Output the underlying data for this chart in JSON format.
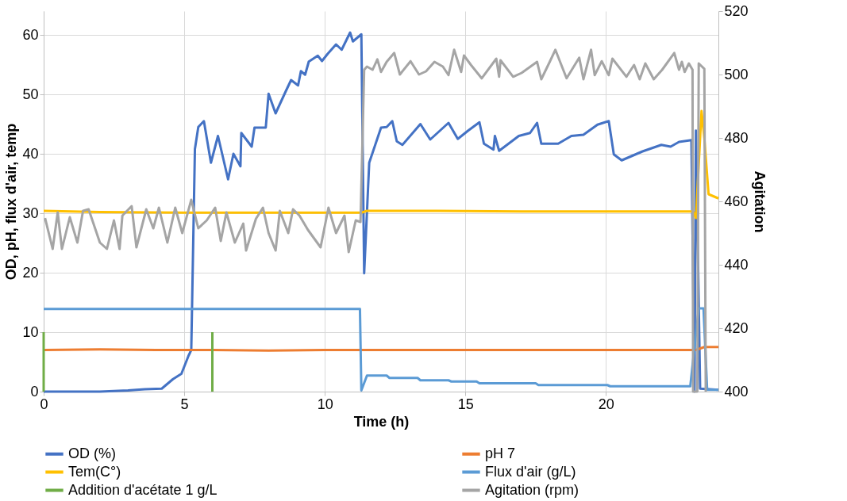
{
  "chart_data": {
    "type": "line",
    "xlabel": "Time (h)",
    "ylabel": "OD, pH, flux d'air, temp",
    "y2label": "Agitation",
    "xlim": [
      0,
      24
    ],
    "xticks": [
      0,
      5,
      10,
      15,
      20
    ],
    "ylim": [
      0,
      64
    ],
    "yticks": [
      0,
      10,
      20,
      30,
      40,
      50,
      60
    ],
    "y2lim": [
      400,
      520
    ],
    "y2ticks": [
      400,
      420,
      440,
      460,
      480,
      500,
      520
    ],
    "grid": true,
    "legend": "bottom",
    "line_style": "solid",
    "marker": "none",
    "series": [
      {
        "name": "OD (%)",
        "color": "#4472c4",
        "x": [
          0,
          1,
          2,
          3,
          3.6,
          4.2,
          4.6,
          4.9,
          5.15,
          5.25,
          5.38,
          5.5,
          5.7,
          5.95,
          6.2,
          6.56,
          6.75,
          7.0,
          7.03,
          7.4,
          7.5,
          7.9,
          8.0,
          8.25,
          8.6,
          8.8,
          9.05,
          9.15,
          9.3,
          9.43,
          9.75,
          9.9,
          10.1,
          10.4,
          10.6,
          10.9,
          11.0,
          11.3,
          11.4,
          11.58,
          12.0,
          12.2,
          12.4,
          12.56,
          12.76,
          13.4,
          13.75,
          14.4,
          14.73,
          15.1,
          15.5,
          15.66,
          16.0,
          16.05,
          16.2,
          16.9,
          17.3,
          17.55,
          17.7,
          18.3,
          18.77,
          19.2,
          19.7,
          20.1,
          20.28,
          20.56,
          21.3,
          21.97,
          22.3,
          22.6,
          23.04,
          23.15,
          23.2,
          23.35,
          24
        ],
        "values": [
          0,
          0,
          0,
          0.2,
          0.4,
          0.5,
          2.1,
          3,
          6,
          7,
          40.8,
          44.5,
          45.5,
          38.5,
          43,
          35.7,
          40,
          37.9,
          43.5,
          41.2,
          44.4,
          44.4,
          50.1,
          46.8,
          50.4,
          52.4,
          51.5,
          53.9,
          53.3,
          55.5,
          56.5,
          55.6,
          56.8,
          58.4,
          57.5,
          60.4,
          58.9,
          60.1,
          19.9,
          38.5,
          44.4,
          44.5,
          45.5,
          42.1,
          41.5,
          45,
          42.4,
          45.2,
          42.5,
          43.9,
          45.3,
          41.7,
          40.7,
          43,
          40.5,
          43,
          43.5,
          45.2,
          41.7,
          41.7,
          43,
          43.2,
          44.9,
          45.5,
          39.9,
          38.9,
          40.4,
          41.5,
          41.2,
          42,
          42.3,
          0,
          43.9,
          0.5,
          0.3
        ]
      },
      {
        "name": "pH 7",
        "color": "#ed7d31",
        "x": [
          0,
          2,
          4,
          6,
          8,
          10,
          12,
          14,
          16,
          18,
          20,
          22,
          23.2,
          23.5,
          24
        ],
        "values": [
          7,
          7.1,
          7,
          7,
          6.9,
          7,
          7,
          7,
          7,
          7,
          7,
          7,
          7,
          7.5,
          7.5
        ]
      },
      {
        "name": "Tem(C°)",
        "color": "#ffc000",
        "x": [
          0,
          2,
          5,
          8,
          11.3,
          11.5,
          14,
          17,
          20,
          23.1,
          23.2,
          23.4,
          23.5,
          23.65,
          24
        ],
        "values": [
          30.4,
          30.2,
          30.1,
          30.1,
          30.1,
          30.4,
          30.4,
          30.3,
          30.3,
          30.3,
          29.2,
          47.2,
          42.6,
          33.2,
          32.5
        ]
      },
      {
        "name": "Flux d'air (g/L)",
        "color": "#5b9bd5",
        "x": [
          0,
          11.25,
          11.3,
          11.5,
          12.2,
          12.3,
          13.3,
          13.4,
          14.4,
          14.5,
          15.4,
          15.5,
          17.5,
          17.6,
          20.05,
          20.15,
          23.0,
          23.3,
          23.47,
          23.6,
          24
        ],
        "values": [
          13.9,
          13.9,
          0.2,
          2.7,
          2.7,
          2.3,
          2.3,
          1.9,
          1.9,
          1.7,
          1.7,
          1.4,
          1.4,
          1.1,
          1.1,
          0.9,
          0.9,
          14,
          14,
          0.3,
          0.3
        ]
      },
      {
        "name": "Addition d'acétate 1 g/L",
        "color": "#70ad47",
        "x": [
          0,
          0,
          3,
          6,
          6
        ],
        "values": [
          10,
          0,
          null,
          0,
          10
        ]
      },
      {
        "name": "Agitation (rpm)",
        "color": "#a5a5a5",
        "axis": "y2",
        "x": [
          0.05,
          0.32,
          0.5,
          0.65,
          0.93,
          1.2,
          1.4,
          1.6,
          2.0,
          2.25,
          2.5,
          2.7,
          2.8,
          3.13,
          3.3,
          3.65,
          3.9,
          4.1,
          4.4,
          4.68,
          4.93,
          5.25,
          5.5,
          5.8,
          6.1,
          6.3,
          6.5,
          6.8,
          7.1,
          7.2,
          7.55,
          7.8,
          8.0,
          8.25,
          8.4,
          8.7,
          8.87,
          9.1,
          9.4,
          9.85,
          10.13,
          10.4,
          10.7,
          10.85,
          11.1,
          11.27,
          11.4,
          11.5,
          11.7,
          11.87,
          12.0,
          12.2,
          12.47,
          12.67,
          13.05,
          13.35,
          13.6,
          13.9,
          14.2,
          14.4,
          14.6,
          14.85,
          14.95,
          15.2,
          15.58,
          16.1,
          16.2,
          16.25,
          16.7,
          17.0,
          17.55,
          17.7,
          18.0,
          18.2,
          18.6,
          19.05,
          19.2,
          19.47,
          19.6,
          19.85,
          20.1,
          20.23,
          20.73,
          21.0,
          21.2,
          21.4,
          21.7,
          22.0,
          22.43,
          22.6,
          22.7,
          22.8,
          22.95,
          23.08,
          23.1,
          23.25,
          23.3,
          23.5,
          23.55
        ],
        "values": [
          454.7,
          445,
          456.5,
          445,
          455,
          447,
          457,
          457.5,
          447,
          445,
          454,
          445,
          455.5,
          458.5,
          445.5,
          457.5,
          451.5,
          458,
          447,
          458,
          450,
          460.5,
          451.5,
          454,
          458,
          447.5,
          456.5,
          447,
          453,
          444.5,
          454.5,
          458,
          450,
          444.5,
          457,
          450,
          457.5,
          455.5,
          451,
          445.5,
          458,
          450,
          455.5,
          444,
          454,
          453.5,
          501.5,
          502.5,
          501.5,
          504.8,
          500.8,
          504,
          506.8,
          500,
          504.2,
          500,
          501,
          504,
          502.5,
          499.8,
          507.8,
          500.8,
          506,
          503,
          498.8,
          505,
          499.3,
          504.5,
          499.3,
          500.5,
          504,
          498.5,
          504,
          507.8,
          498.8,
          505.3,
          498.5,
          507.8,
          499.8,
          504.2,
          499.8,
          505,
          499.3,
          503,
          498.5,
          503.5,
          498.5,
          501.5,
          506.8,
          501.5,
          504,
          500.8,
          503.5,
          501.5,
          400,
          400,
          503.5,
          501.8,
          400
        ]
      }
    ]
  }
}
